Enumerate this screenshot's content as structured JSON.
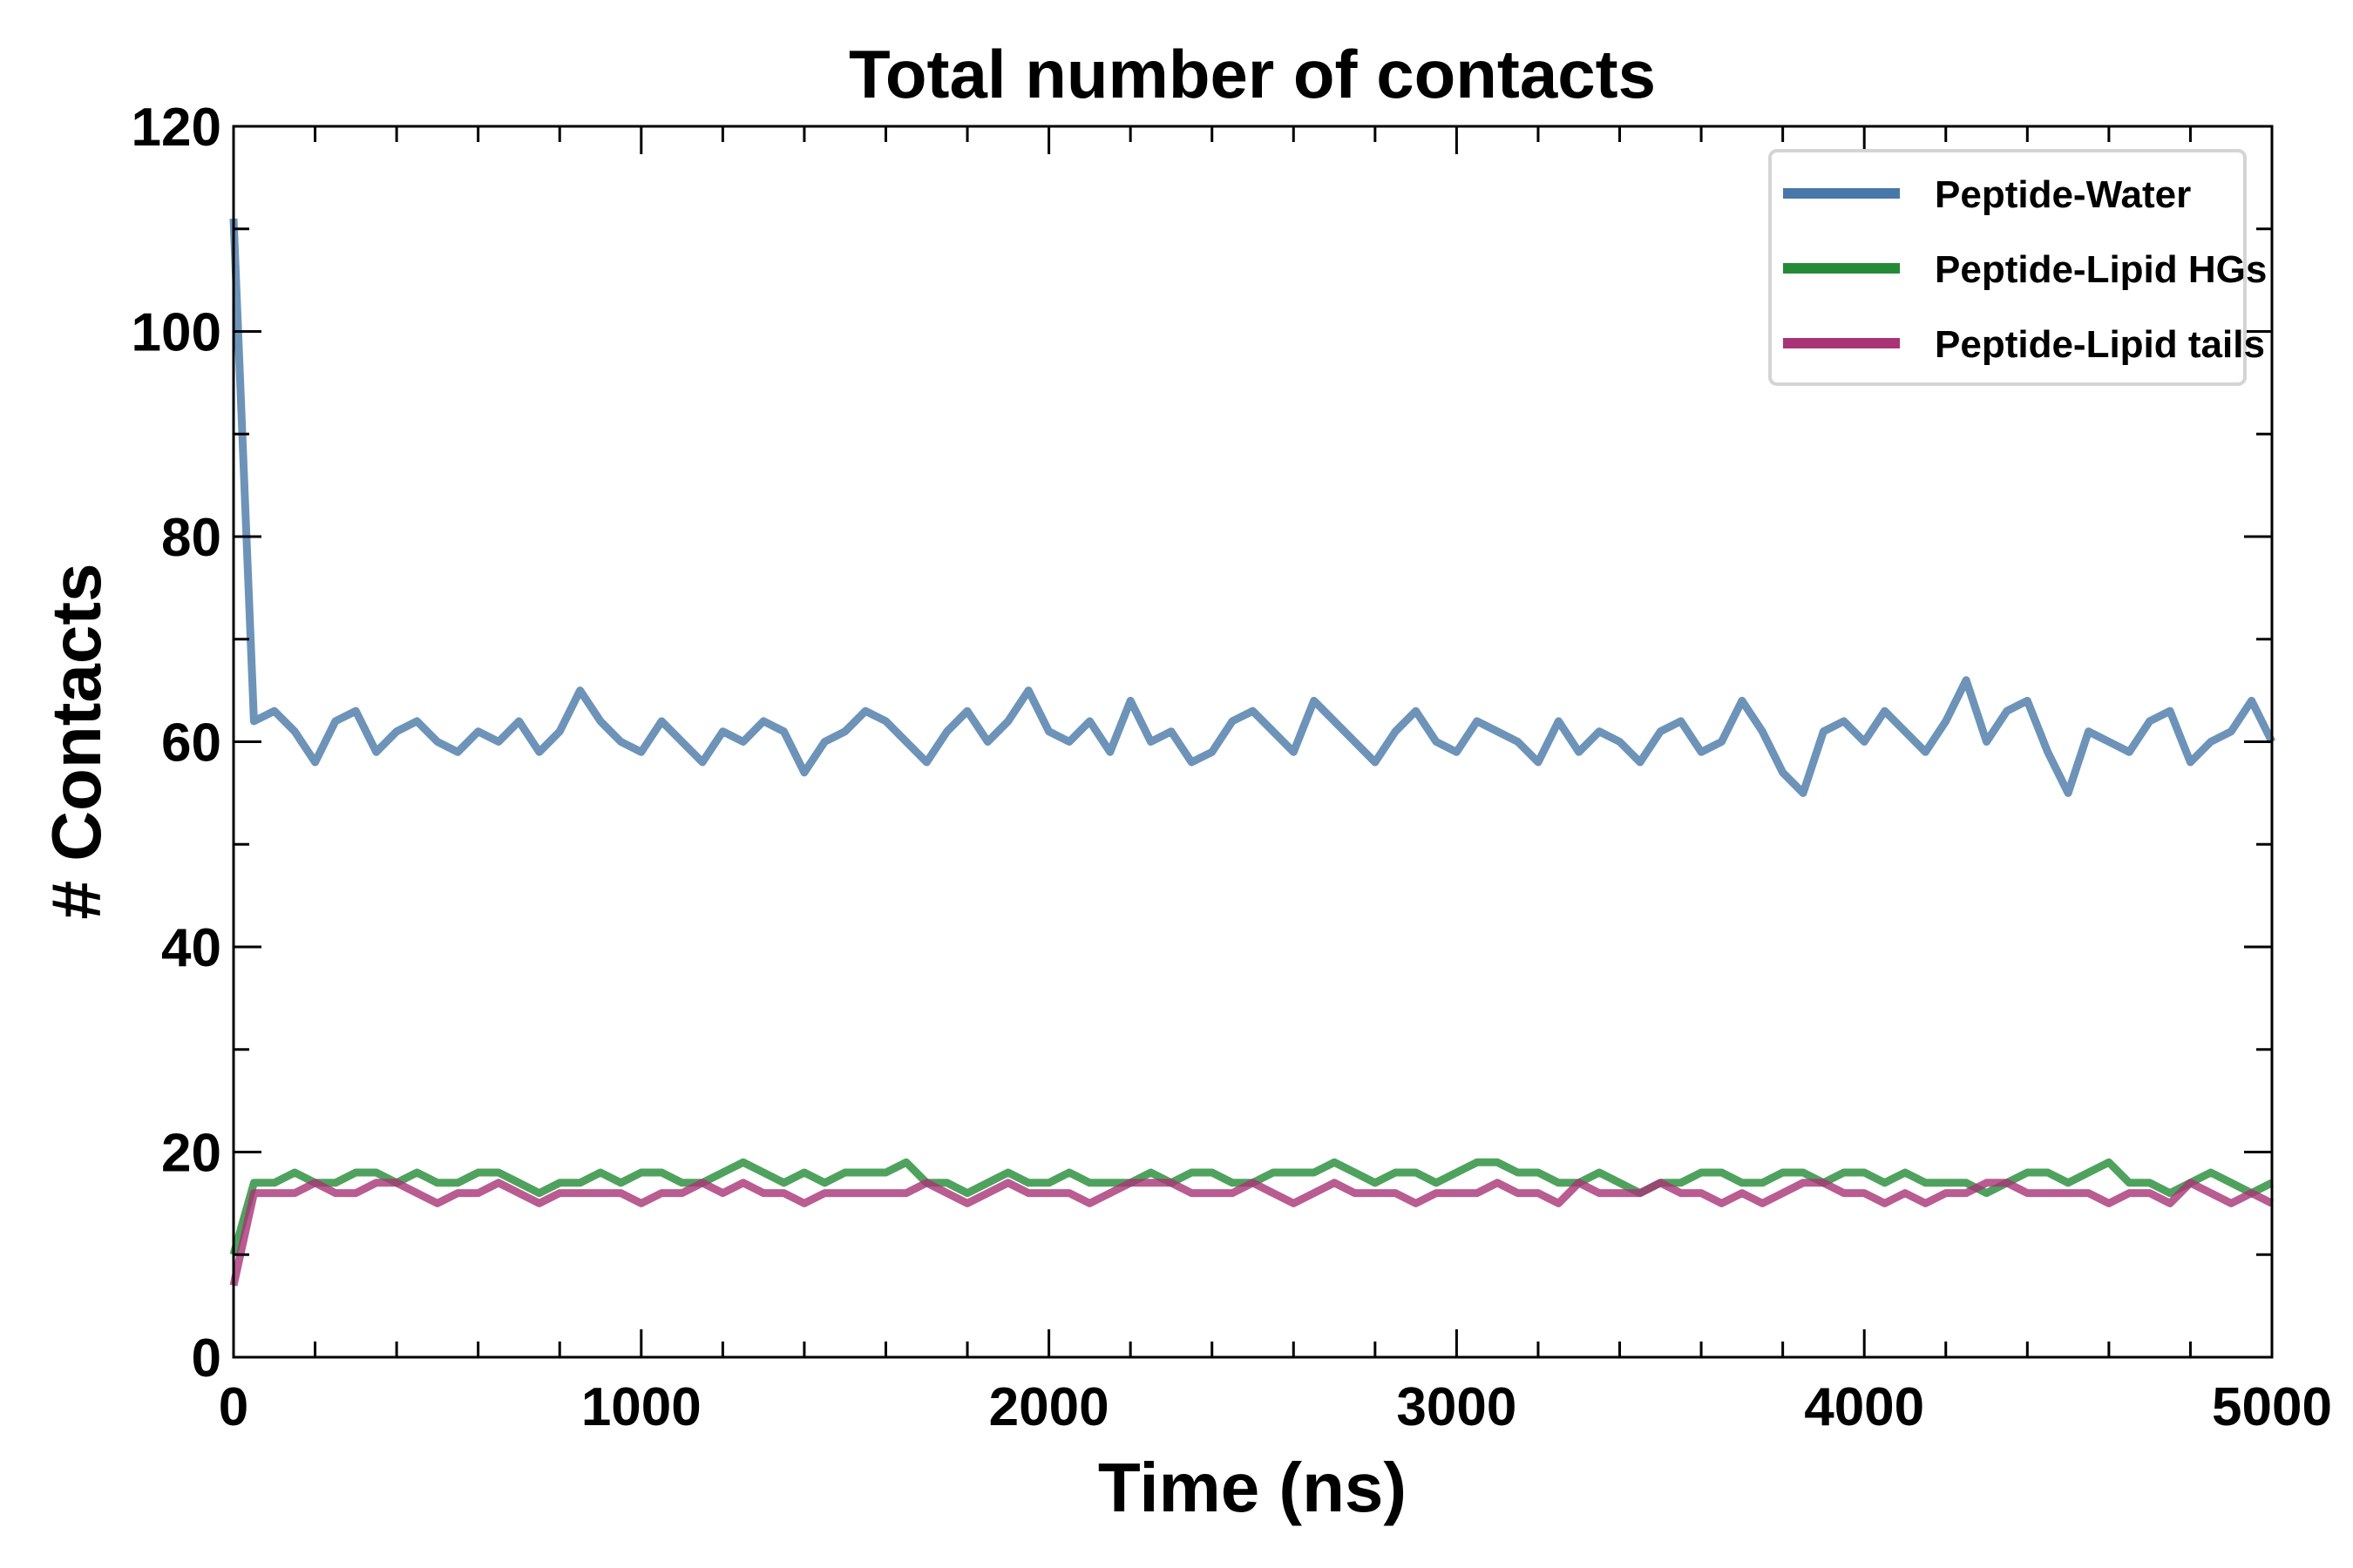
{
  "chart_data": {
    "type": "line",
    "title": "Total number of contacts",
    "xlabel": "Time (ns)",
    "ylabel": "# Contacts",
    "xlim": [
      0,
      5000
    ],
    "ylim": [
      0,
      120
    ],
    "x_start": 0,
    "x_step": 50,
    "xticks": [
      "0",
      "1000",
      "2000",
      "3000",
      "4000",
      "5000"
    ],
    "yticks": [
      "0",
      "20",
      "40",
      "60",
      "80",
      "100",
      "120"
    ],
    "grid": false,
    "legend_position": "top-right",
    "series": [
      {
        "name": "Peptide-Water",
        "color": "#4878a8",
        "values": [
          111,
          62,
          63,
          61,
          58,
          62,
          63,
          59,
          61,
          62,
          60,
          59,
          61,
          60,
          62,
          59,
          61,
          65,
          62,
          60,
          59,
          62,
          60,
          58,
          61,
          60,
          62,
          61,
          57,
          60,
          61,
          63,
          62,
          60,
          58,
          61,
          63,
          60,
          62,
          65,
          61,
          60,
          62,
          59,
          64,
          60,
          61,
          58,
          59,
          62,
          63,
          61,
          59,
          64,
          62,
          60,
          58,
          61,
          63,
          60,
          59,
          62,
          61,
          60,
          58,
          62,
          59,
          61,
          60,
          58,
          61,
          62,
          59,
          60,
          64,
          61,
          57,
          55,
          61,
          62,
          60,
          63,
          61,
          59,
          62,
          66,
          60,
          63,
          64,
          59,
          55,
          61,
          60,
          59,
          62,
          63,
          58,
          60,
          61,
          64,
          60
        ]
      },
      {
        "name": "Peptide-Lipid HGs",
        "color": "#238b36",
        "values": [
          10,
          17,
          17,
          18,
          17,
          17,
          18,
          18,
          17,
          18,
          17,
          17,
          18,
          18,
          17,
          16,
          17,
          17,
          18,
          17,
          18,
          18,
          17,
          17,
          18,
          19,
          18,
          17,
          18,
          17,
          18,
          18,
          18,
          19,
          17,
          17,
          16,
          17,
          18,
          17,
          17,
          18,
          17,
          17,
          17,
          18,
          17,
          18,
          18,
          17,
          17,
          18,
          18,
          18,
          19,
          18,
          17,
          18,
          18,
          17,
          18,
          19,
          19,
          18,
          18,
          17,
          17,
          18,
          17,
          16,
          17,
          17,
          18,
          18,
          17,
          17,
          18,
          18,
          17,
          18,
          18,
          17,
          18,
          17,
          17,
          17,
          16,
          17,
          18,
          18,
          17,
          18,
          19,
          17,
          17,
          16,
          17,
          18,
          17,
          16,
          17
        ]
      },
      {
        "name": "Peptide-Lipid tails",
        "color": "#a83375",
        "values": [
          7,
          16,
          16,
          16,
          17,
          16,
          16,
          17,
          17,
          16,
          15,
          16,
          16,
          17,
          16,
          15,
          16,
          16,
          16,
          16,
          15,
          16,
          16,
          17,
          16,
          17,
          16,
          16,
          15,
          16,
          16,
          16,
          16,
          16,
          17,
          16,
          15,
          16,
          17,
          16,
          16,
          16,
          15,
          16,
          17,
          17,
          17,
          16,
          16,
          16,
          17,
          16,
          15,
          16,
          17,
          16,
          16,
          16,
          15,
          16,
          16,
          16,
          17,
          16,
          16,
          15,
          17,
          16,
          16,
          16,
          17,
          16,
          16,
          15,
          16,
          15,
          16,
          17,
          17,
          16,
          16,
          15,
          16,
          15,
          16,
          16,
          17,
          17,
          16,
          16,
          16,
          16,
          15,
          16,
          16,
          15,
          17,
          16,
          15,
          16,
          15
        ]
      }
    ]
  }
}
